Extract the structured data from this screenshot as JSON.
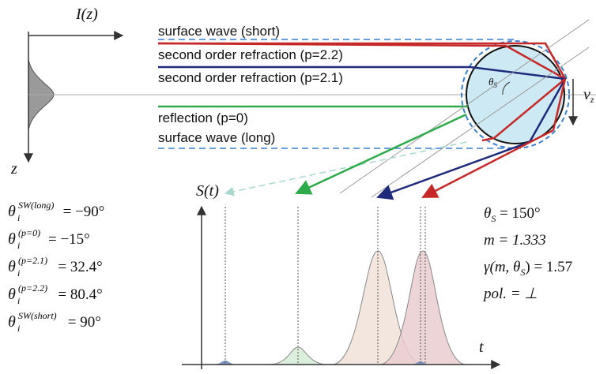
{
  "profile": {
    "axis_label": "I(z)",
    "depth_label": "z"
  },
  "rays": [
    {
      "label": "surface wave (short)"
    },
    {
      "label": "second order refraction (p=2.2)"
    },
    {
      "label": "second order refraction (p=2.1)"
    },
    {
      "label": "reflection (p=0)"
    },
    {
      "label": "surface wave (long)"
    }
  ],
  "circle": {
    "angle_label": "θ",
    "angle_sub": "S",
    "velocity_label": "v",
    "velocity_sub": "z"
  },
  "signal": {
    "axis_label": "S(t)",
    "time_label": "t"
  },
  "incidence_angles": [
    {
      "symbol": "θ",
      "sub": "i",
      "sup": "SW(long)",
      "value": "= −90°"
    },
    {
      "symbol": "θ",
      "sub": "i",
      "sup": "(p=0)",
      "value": "= −15°"
    },
    {
      "symbol": "θ",
      "sub": "i",
      "sup": "(p=2.1)",
      "value": "= 32.4°"
    },
    {
      "symbol": "θ",
      "sub": "i",
      "sup": "(p=2.2)",
      "value": "= 80.4°"
    },
    {
      "symbol": "θ",
      "sub": "i",
      "sup": "SW(short)",
      "value": "= 90°"
    }
  ],
  "parameters": [
    {
      "text": "θ",
      "sub": "S",
      "after": " = 150°"
    },
    {
      "text": "m = 1.333"
    },
    {
      "text": "γ(m, θ",
      "sub": "S",
      "after": ") = 1.57"
    },
    {
      "text": "pol. = ⊥"
    }
  ]
}
